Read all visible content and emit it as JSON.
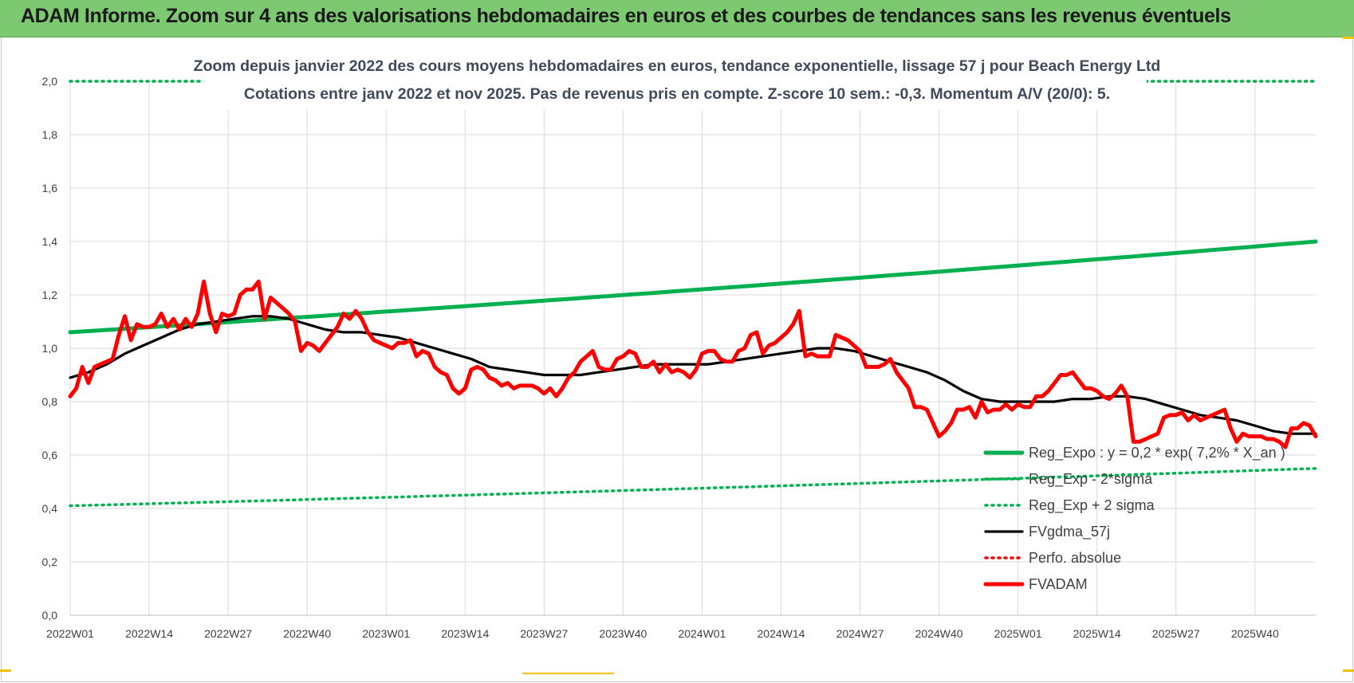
{
  "page": {
    "banner_title": "ADAM Informe. Zoom sur 4 ans des valorisations hebdomadaires en euros et des courbes de tendances sans les revenus éventuels",
    "banner_color": "#7dc971"
  },
  "chart_data": {
    "type": "line",
    "title_line1": "Zoom depuis janvier 2022 des cours moyens hebdomadaires en euros, tendance exponentielle, lissage 57 j pour Beach Energy Ltd",
    "title_line2": "Cotations entre janv 2022 et nov 2025. Pas de revenus pris en compte. Z-score 10 sem.: -0,3. Momentum A/V (20/0): 5.",
    "y_ticks": [
      "0,0",
      "0,2",
      "0,4",
      "0,6",
      "0,8",
      "1,0",
      "1,2",
      "1,4",
      "1,6",
      "1,8",
      "2,0"
    ],
    "ylim": [
      0,
      2.0
    ],
    "x_ticks": [
      "2022W01",
      "2022W14",
      "2022W27",
      "2022W40",
      "2023W01",
      "2023W14",
      "2023W27",
      "2023W40",
      "2024W01",
      "2024W14",
      "2024W27",
      "2024W40",
      "2025W01",
      "2025W14",
      "2025W27",
      "2025W40"
    ],
    "x_range_weeks": [
      0,
      205
    ],
    "grid": true,
    "legend_position": "bottom-right",
    "series": [
      {
        "name": "Reg_Expo : y = 0,2 * exp( 7,2% *  X_an )",
        "color": "#00b050",
        "style": "solid-thick",
        "start": {
          "week": 0,
          "value": 1.06
        },
        "end": {
          "week": 205,
          "value": 1.4
        }
      },
      {
        "name": "Reg_Exp - 2*sigma",
        "color": "#00b050",
        "style": "dotted",
        "start": {
          "week": 0,
          "value": 0.41
        },
        "end": {
          "week": 205,
          "value": 0.55
        }
      },
      {
        "name": "Reg_Exp + 2 sigma",
        "color": "#00b050",
        "style": "dotted",
        "segments": [
          {
            "from_week": 0,
            "to_week": 22,
            "value": 2.0
          },
          {
            "from_week": 177,
            "to_week": 205,
            "value": 2.0
          }
        ]
      },
      {
        "name": "FVgdma_57j",
        "color": "#000000",
        "style": "solid",
        "points": [
          [
            0,
            0.89
          ],
          [
            3,
            0.91
          ],
          [
            6,
            0.94
          ],
          [
            9,
            0.98
          ],
          [
            12,
            1.01
          ],
          [
            15,
            1.04
          ],
          [
            18,
            1.07
          ],
          [
            21,
            1.09
          ],
          [
            24,
            1.1
          ],
          [
            27,
            1.11
          ],
          [
            30,
            1.12
          ],
          [
            33,
            1.12
          ],
          [
            36,
            1.11
          ],
          [
            39,
            1.09
          ],
          [
            42,
            1.07
          ],
          [
            45,
            1.06
          ],
          [
            48,
            1.06
          ],
          [
            51,
            1.05
          ],
          [
            54,
            1.04
          ],
          [
            57,
            1.02
          ],
          [
            60,
            1.0
          ],
          [
            63,
            0.98
          ],
          [
            66,
            0.96
          ],
          [
            69,
            0.93
          ],
          [
            72,
            0.92
          ],
          [
            75,
            0.91
          ],
          [
            78,
            0.9
          ],
          [
            81,
            0.9
          ],
          [
            84,
            0.9
          ],
          [
            87,
            0.91
          ],
          [
            90,
            0.92
          ],
          [
            93,
            0.93
          ],
          [
            96,
            0.94
          ],
          [
            99,
            0.94
          ],
          [
            102,
            0.94
          ],
          [
            105,
            0.94
          ],
          [
            108,
            0.95
          ],
          [
            111,
            0.96
          ],
          [
            114,
            0.97
          ],
          [
            117,
            0.98
          ],
          [
            120,
            0.99
          ],
          [
            123,
            1.0
          ],
          [
            126,
            1.0
          ],
          [
            129,
            0.99
          ],
          [
            132,
            0.97
          ],
          [
            135,
            0.95
          ],
          [
            138,
            0.93
          ],
          [
            141,
            0.91
          ],
          [
            144,
            0.88
          ],
          [
            147,
            0.84
          ],
          [
            150,
            0.81
          ],
          [
            153,
            0.8
          ],
          [
            156,
            0.8
          ],
          [
            159,
            0.8
          ],
          [
            162,
            0.8
          ],
          [
            165,
            0.81
          ],
          [
            168,
            0.81
          ],
          [
            171,
            0.82
          ],
          [
            174,
            0.82
          ],
          [
            177,
            0.81
          ],
          [
            180,
            0.79
          ],
          [
            183,
            0.77
          ],
          [
            186,
            0.75
          ],
          [
            189,
            0.74
          ],
          [
            192,
            0.73
          ],
          [
            195,
            0.71
          ],
          [
            198,
            0.69
          ],
          [
            201,
            0.68
          ],
          [
            205,
            0.68
          ]
        ]
      },
      {
        "name": "Perfo. absolue",
        "color": "#ff0000",
        "style": "dotted",
        "points": []
      },
      {
        "name": "FVADAM",
        "color": "#ff0000",
        "style": "solid-thick",
        "points": [
          [
            0,
            0.82
          ],
          [
            1,
            0.85
          ],
          [
            2,
            0.93
          ],
          [
            3,
            0.87
          ],
          [
            4,
            0.93
          ],
          [
            5,
            0.94
          ],
          [
            6,
            0.95
          ],
          [
            7,
            0.96
          ],
          [
            8,
            1.05
          ],
          [
            9,
            1.12
          ],
          [
            10,
            1.03
          ],
          [
            11,
            1.09
          ],
          [
            12,
            1.08
          ],
          [
            13,
            1.08
          ],
          [
            14,
            1.09
          ],
          [
            15,
            1.13
          ],
          [
            16,
            1.08
          ],
          [
            17,
            1.11
          ],
          [
            18,
            1.07
          ],
          [
            19,
            1.11
          ],
          [
            20,
            1.08
          ],
          [
            21,
            1.13
          ],
          [
            22,
            1.25
          ],
          [
            23,
            1.13
          ],
          [
            24,
            1.06
          ],
          [
            25,
            1.13
          ],
          [
            26,
            1.12
          ],
          [
            27,
            1.13
          ],
          [
            28,
            1.2
          ],
          [
            29,
            1.22
          ],
          [
            30,
            1.22
          ],
          [
            31,
            1.25
          ],
          [
            32,
            1.11
          ],
          [
            33,
            1.19
          ],
          [
            34,
            1.17
          ],
          [
            35,
            1.15
          ],
          [
            36,
            1.13
          ],
          [
            37,
            1.1
          ],
          [
            38,
            0.99
          ],
          [
            39,
            1.02
          ],
          [
            40,
            1.01
          ],
          [
            41,
            0.99
          ],
          [
            42,
            1.02
          ],
          [
            43,
            1.05
          ],
          [
            44,
            1.08
          ],
          [
            45,
            1.13
          ],
          [
            46,
            1.11
          ],
          [
            47,
            1.14
          ],
          [
            48,
            1.11
          ],
          [
            49,
            1.06
          ],
          [
            50,
            1.03
          ],
          [
            51,
            1.02
          ],
          [
            52,
            1.01
          ],
          [
            53,
            1.0
          ],
          [
            54,
            1.02
          ],
          [
            55,
            1.02
          ],
          [
            56,
            1.03
          ],
          [
            57,
            0.97
          ],
          [
            58,
            0.99
          ],
          [
            59,
            0.98
          ],
          [
            60,
            0.93
          ],
          [
            61,
            0.91
          ],
          [
            62,
            0.9
          ],
          [
            63,
            0.85
          ],
          [
            64,
            0.83
          ],
          [
            65,
            0.85
          ],
          [
            66,
            0.92
          ],
          [
            67,
            0.93
          ],
          [
            68,
            0.92
          ],
          [
            69,
            0.89
          ],
          [
            70,
            0.88
          ],
          [
            71,
            0.86
          ],
          [
            72,
            0.87
          ],
          [
            73,
            0.85
          ],
          [
            74,
            0.86
          ],
          [
            75,
            0.86
          ],
          [
            76,
            0.86
          ],
          [
            77,
            0.85
          ],
          [
            78,
            0.83
          ],
          [
            79,
            0.85
          ],
          [
            80,
            0.82
          ],
          [
            81,
            0.85
          ],
          [
            82,
            0.89
          ],
          [
            83,
            0.91
          ],
          [
            84,
            0.95
          ],
          [
            85,
            0.97
          ],
          [
            86,
            0.99
          ],
          [
            87,
            0.93
          ],
          [
            88,
            0.92
          ],
          [
            89,
            0.92
          ],
          [
            90,
            0.96
          ],
          [
            91,
            0.97
          ],
          [
            92,
            0.99
          ],
          [
            93,
            0.98
          ],
          [
            94,
            0.93
          ],
          [
            95,
            0.93
          ],
          [
            96,
            0.95
          ],
          [
            97,
            0.91
          ],
          [
            98,
            0.94
          ],
          [
            99,
            0.91
          ],
          [
            100,
            0.92
          ],
          [
            101,
            0.91
          ],
          [
            102,
            0.89
          ],
          [
            103,
            0.92
          ],
          [
            104,
            0.98
          ],
          [
            105,
            0.99
          ],
          [
            106,
            0.99
          ],
          [
            107,
            0.96
          ],
          [
            108,
            0.95
          ],
          [
            109,
            0.95
          ],
          [
            110,
            0.99
          ],
          [
            111,
            1.0
          ],
          [
            112,
            1.05
          ],
          [
            113,
            1.06
          ],
          [
            114,
            0.98
          ],
          [
            115,
            1.01
          ],
          [
            116,
            1.02
          ],
          [
            117,
            1.04
          ],
          [
            118,
            1.06
          ],
          [
            119,
            1.09
          ],
          [
            120,
            1.14
          ],
          [
            121,
            0.97
          ],
          [
            122,
            0.98
          ],
          [
            123,
            0.97
          ],
          [
            124,
            0.97
          ],
          [
            125,
            0.97
          ],
          [
            126,
            1.05
          ],
          [
            127,
            1.04
          ],
          [
            128,
            1.03
          ],
          [
            129,
            1.01
          ],
          [
            130,
            0.99
          ],
          [
            131,
            0.93
          ],
          [
            132,
            0.93
          ],
          [
            133,
            0.93
          ],
          [
            134,
            0.94
          ],
          [
            135,
            0.96
          ],
          [
            136,
            0.91
          ],
          [
            137,
            0.88
          ],
          [
            138,
            0.85
          ],
          [
            139,
            0.78
          ],
          [
            140,
            0.78
          ],
          [
            141,
            0.77
          ],
          [
            142,
            0.72
          ],
          [
            143,
            0.67
          ],
          [
            144,
            0.69
          ],
          [
            145,
            0.72
          ],
          [
            146,
            0.77
          ],
          [
            147,
            0.77
          ],
          [
            148,
            0.78
          ],
          [
            149,
            0.74
          ],
          [
            150,
            0.8
          ],
          [
            151,
            0.76
          ],
          [
            152,
            0.77
          ],
          [
            153,
            0.77
          ],
          [
            154,
            0.79
          ],
          [
            155,
            0.77
          ],
          [
            156,
            0.79
          ],
          [
            157,
            0.78
          ],
          [
            158,
            0.78
          ],
          [
            159,
            0.82
          ],
          [
            160,
            0.82
          ],
          [
            161,
            0.84
          ],
          [
            162,
            0.87
          ],
          [
            163,
            0.9
          ],
          [
            164,
            0.9
          ],
          [
            165,
            0.91
          ],
          [
            166,
            0.88
          ],
          [
            167,
            0.85
          ],
          [
            168,
            0.85
          ],
          [
            169,
            0.84
          ],
          [
            170,
            0.82
          ],
          [
            171,
            0.81
          ],
          [
            172,
            0.83
          ],
          [
            173,
            0.86
          ],
          [
            174,
            0.82
          ],
          [
            175,
            0.65
          ],
          [
            176,
            0.65
          ],
          [
            177,
            0.66
          ],
          [
            178,
            0.67
          ],
          [
            179,
            0.68
          ],
          [
            180,
            0.74
          ],
          [
            181,
            0.75
          ],
          [
            182,
            0.75
          ],
          [
            183,
            0.76
          ],
          [
            184,
            0.73
          ],
          [
            185,
            0.75
          ],
          [
            186,
            0.73
          ],
          [
            187,
            0.74
          ],
          [
            188,
            0.75
          ],
          [
            189,
            0.76
          ],
          [
            190,
            0.77
          ],
          [
            191,
            0.7
          ],
          [
            192,
            0.65
          ],
          [
            193,
            0.68
          ],
          [
            194,
            0.67
          ],
          [
            195,
            0.67
          ],
          [
            196,
            0.67
          ],
          [
            197,
            0.66
          ],
          [
            198,
            0.66
          ],
          [
            199,
            0.65
          ],
          [
            200,
            0.63
          ],
          [
            201,
            0.7
          ],
          [
            202,
            0.7
          ],
          [
            203,
            0.72
          ],
          [
            204,
            0.71
          ],
          [
            205,
            0.67
          ]
        ]
      }
    ]
  }
}
